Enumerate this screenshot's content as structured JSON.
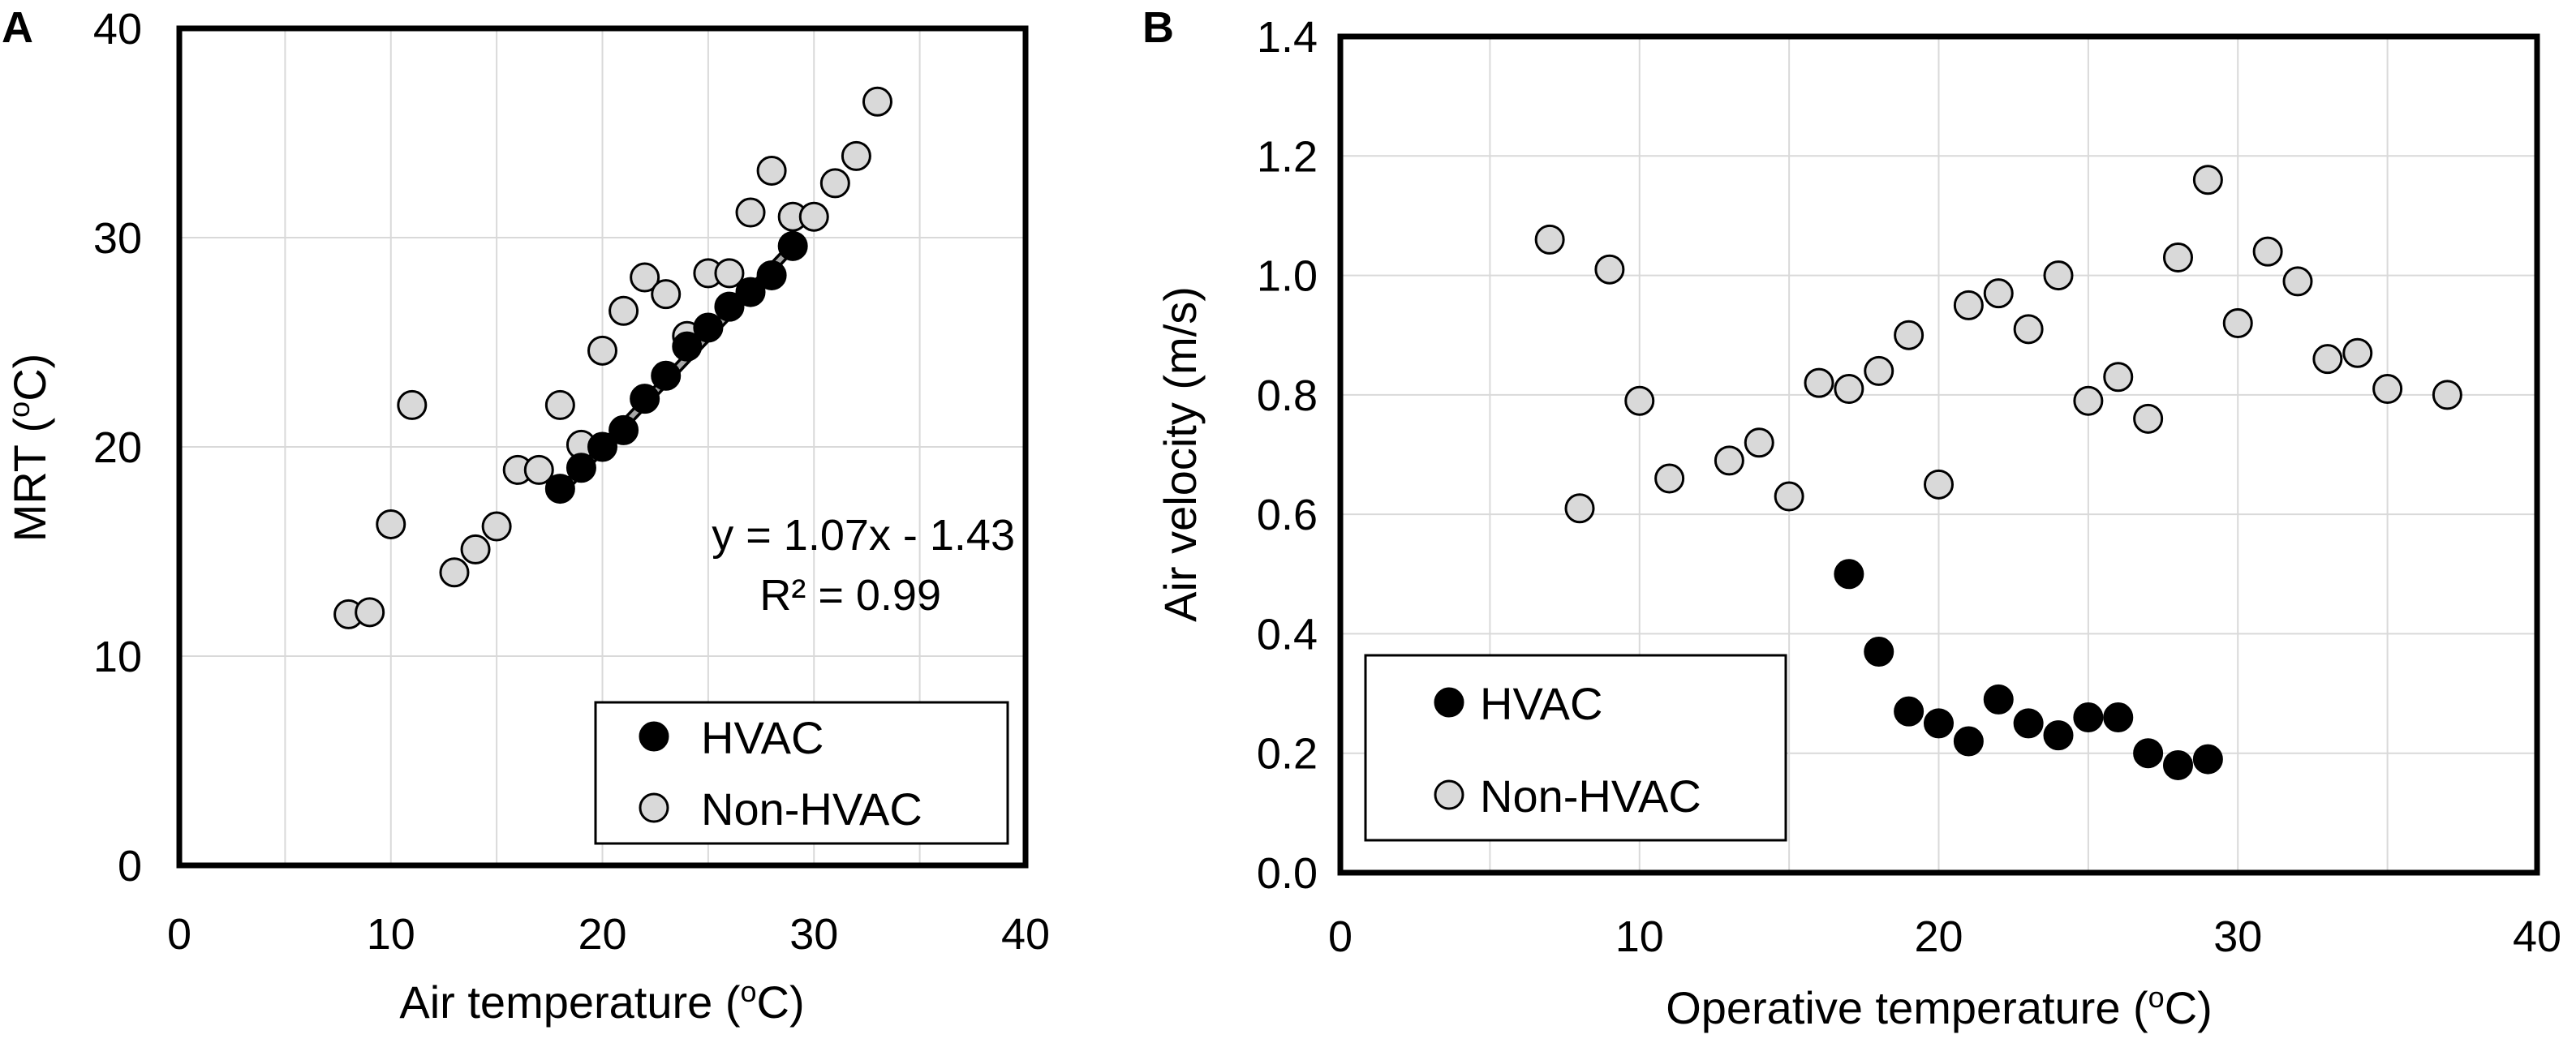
{
  "chart_data": [
    {
      "panel": "A",
      "type": "scatter",
      "xlabel": "Air temperature (oC)",
      "ylabel": "MRT (oC)",
      "xlim": [
        0,
        40
      ],
      "ylim": [
        0,
        40
      ],
      "xticks": [
        0,
        10,
        20,
        30,
        40
      ],
      "yticks": [
        0,
        10,
        20,
        30,
        40
      ],
      "grid": true,
      "legend_position": "bottom-right",
      "series": [
        {
          "name": "HVAC",
          "color": "#000000",
          "x": [
            18,
            19,
            20,
            21,
            22,
            23,
            24,
            25,
            26,
            27,
            28,
            29
          ],
          "y": [
            18.0,
            19.0,
            20.0,
            20.8,
            22.3,
            23.4,
            24.8,
            25.7,
            26.7,
            27.4,
            28.2,
            29.6
          ]
        },
        {
          "name": "Non-HVAC",
          "color": "#d9d9d9",
          "x": [
            8,
            9,
            10,
            11,
            13,
            14,
            15,
            16,
            17,
            18,
            19,
            20,
            21,
            22,
            23,
            24,
            25,
            26,
            27,
            28,
            29,
            30,
            31,
            32,
            33
          ],
          "y": [
            12.0,
            12.1,
            16.3,
            22.0,
            14.0,
            15.1,
            16.2,
            18.9,
            18.9,
            22.0,
            20.1,
            24.6,
            26.5,
            28.1,
            27.3,
            25.3,
            28.3,
            28.3,
            31.2,
            33.2,
            31.0,
            31.0,
            32.6,
            33.9,
            36.5
          ]
        }
      ],
      "trendline": {
        "slope": 1.07,
        "intercept": -1.43,
        "x_range": [
          18,
          29
        ],
        "color": "#a6a6a6"
      },
      "annotations": [
        "y = 1.07x - 1.43",
        "R² = 0.99"
      ]
    },
    {
      "panel": "B",
      "type": "scatter",
      "xlabel": "Operative temperature (oC)",
      "ylabel": "Air velocity (m/s)",
      "xlim": [
        0,
        40
      ],
      "ylim": [
        0,
        1.4
      ],
      "xticks": [
        0,
        10,
        20,
        30,
        40
      ],
      "yticks": [
        "0.0",
        "0.2",
        "0.4",
        "0.6",
        "0.8",
        "1.0",
        "1.2",
        "1.4"
      ],
      "grid": true,
      "legend_position": "bottom-left",
      "series": [
        {
          "name": "HVAC",
          "color": "#000000",
          "x": [
            17,
            18,
            19,
            20,
            21,
            22,
            23,
            24,
            25,
            26,
            27,
            28,
            29
          ],
          "y": [
            0.5,
            0.37,
            0.27,
            0.25,
            0.22,
            0.29,
            0.25,
            0.23,
            0.26,
            0.26,
            0.2,
            0.18,
            0.19
          ]
        },
        {
          "name": "Non-HVAC",
          "color": "#d9d9d9",
          "x": [
            7,
            8,
            9,
            10,
            11,
            13,
            14,
            15,
            16,
            17,
            18,
            19,
            20,
            21,
            22,
            23,
            24,
            25,
            26,
            27,
            28,
            29,
            30,
            31,
            32,
            33,
            34,
            35,
            37
          ],
          "y": [
            1.06,
            0.61,
            1.01,
            0.79,
            0.66,
            0.69,
            0.72,
            0.63,
            0.82,
            0.81,
            0.84,
            0.9,
            0.65,
            0.95,
            0.97,
            0.91,
            1.0,
            0.79,
            0.83,
            0.76,
            1.03,
            1.16,
            0.92,
            1.04,
            0.99,
            0.86,
            0.87,
            0.81,
            0.8
          ]
        }
      ]
    }
  ],
  "panels": {
    "A": {
      "letter": "A",
      "xlabel_main": "Air temperature (",
      "xlabel_sup": "o",
      "xlabel_end": "C)",
      "ylabel_main": "MRT (",
      "ylabel_sup": "o",
      "ylabel_end": "C)",
      "legend": [
        "HVAC",
        "Non-HVAC"
      ],
      "equation": "y = 1.07x - 1.43",
      "r2": "R² = 0.99"
    },
    "B": {
      "letter": "B",
      "xlabel_main": "Operative temperature (",
      "xlabel_sup": "o",
      "xlabel_end": "C)",
      "ylabel": "Air velocity (m/s)",
      "legend": [
        "HVAC",
        "Non-HVAC"
      ]
    }
  }
}
